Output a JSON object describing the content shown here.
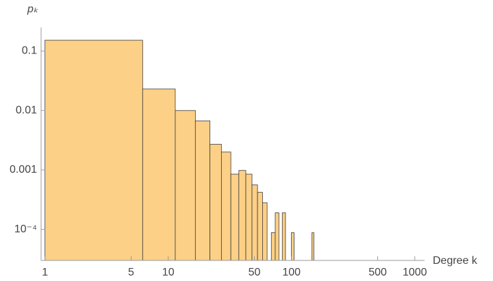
{
  "chart_data": {
    "type": "histogram",
    "xlabel": "Degree k",
    "ylabel": "pₖ",
    "bins": [
      1,
      6.2,
      11.4,
      16.6,
      21.8,
      27,
      32.2,
      37.4,
      42.6,
      47.8,
      53,
      58.2,
      63.4,
      68.6,
      73.8,
      79,
      84.2,
      89.4,
      94.6,
      99.8,
      105,
      110.2,
      115.4,
      120.6,
      125.8,
      131,
      136.2,
      141.4,
      146.6,
      151.8
    ],
    "values": [
      0.152,
      0.023,
      0.01,
      0.0067,
      0.0027,
      0.002,
      0.00085,
      0.00098,
      0.00085,
      0.00056,
      0.00042,
      0.00028,
      0,
      8.8e-05,
      0.00019,
      0,
      0.00019,
      0,
      0,
      8.8e-05,
      0,
      0,
      0,
      0,
      0,
      0,
      0,
      0,
      8.8e-05
    ],
    "color": "#fcd086",
    "edge_color": "#3a3a3a",
    "xscale": "log",
    "yscale": "log",
    "xlim": [
      0.93,
      1200
    ],
    "ylim": [
      3e-05,
      0.25
    ],
    "xticks": [
      1,
      5,
      10,
      50,
      100,
      500,
      1000
    ],
    "yticks": [
      0.1,
      0.01,
      0.001,
      {
        "value": 0.0001,
        "label": "10⁻⁴"
      }
    ]
  }
}
